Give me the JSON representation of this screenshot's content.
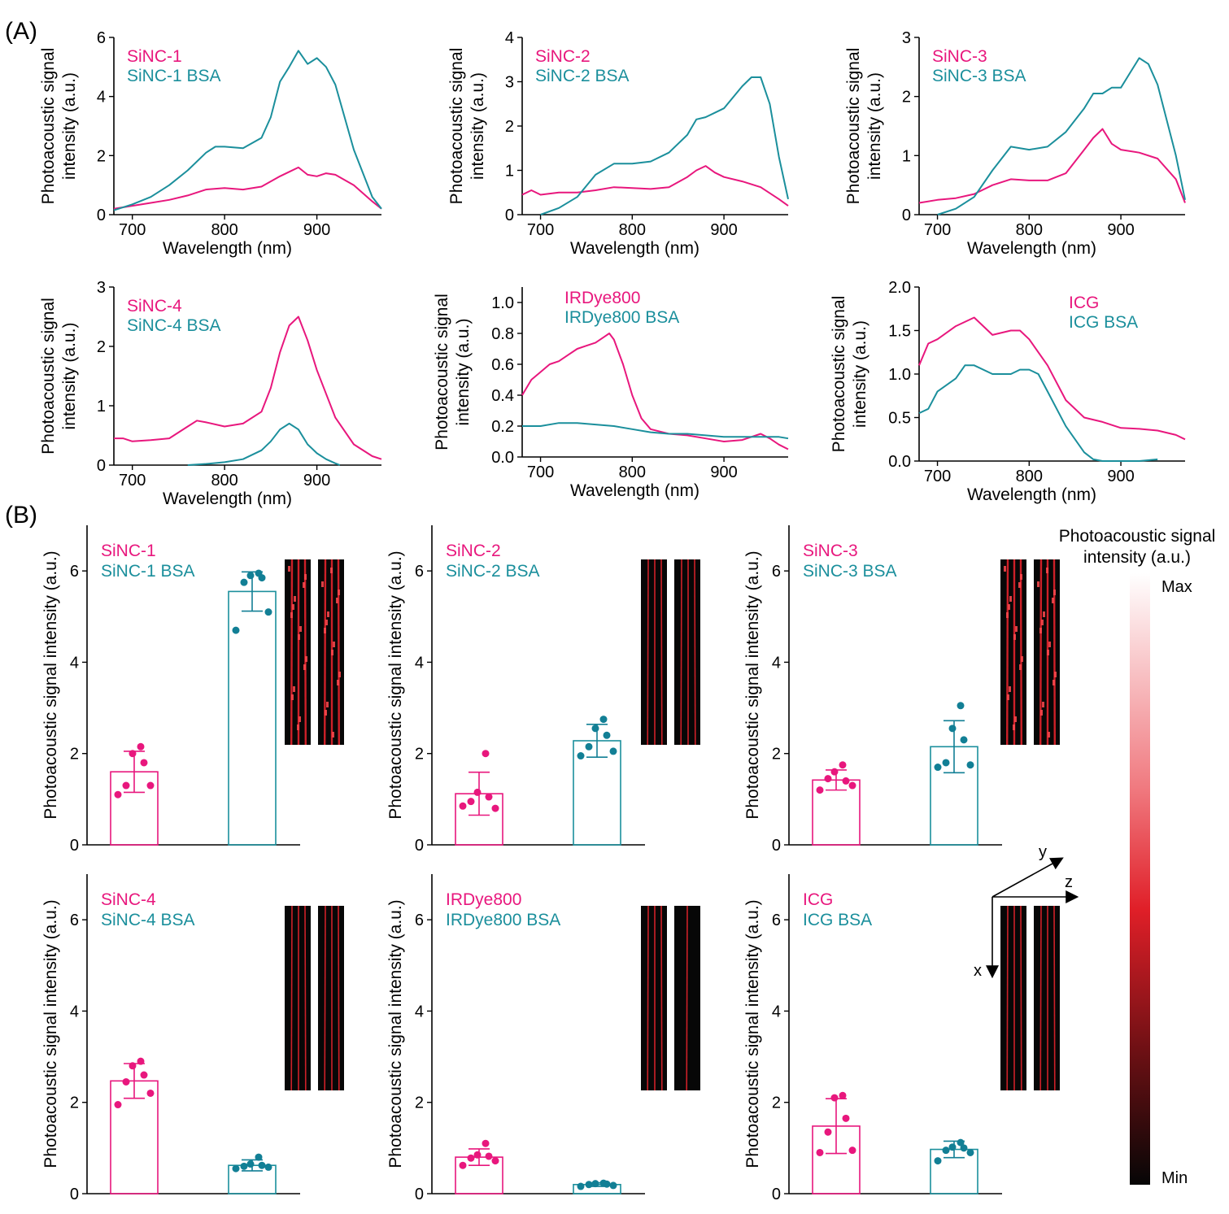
{
  "figure": {
    "panel_labels": [
      "(A)",
      "(B)"
    ],
    "colors": {
      "free": "#e8177d",
      "bsa": "#1b8f9c",
      "bsa_dot": "#127f95"
    },
    "colorbar": {
      "title_line1": "Photoacoustic signal",
      "title_line2": "intensity (a.u.)",
      "max_label": "Max",
      "min_label": "Min"
    },
    "axes_inset": {
      "x": "x",
      "y": "y",
      "z": "z"
    }
  },
  "chart_data": [
    {
      "type": "line",
      "id": "A1",
      "xlabel": "Wavelength (nm)",
      "ylabel_line1": "Photoacoustic signal",
      "ylabel_line2": "intensity (a.u.)",
      "xlim": [
        680,
        970
      ],
      "ylim": [
        0,
        6
      ],
      "xticks": [
        700,
        800,
        900
      ],
      "yticks": [
        0,
        2,
        4,
        6
      ],
      "ytick_labels": [
        "0",
        "2",
        "4",
        "6"
      ],
      "legend_pos": "top-left",
      "series": [
        {
          "name": "SiNC-1",
          "color": "#e8177d",
          "x": [
            680,
            700,
            720,
            740,
            760,
            780,
            800,
            820,
            840,
            860,
            870,
            880,
            890,
            900,
            910,
            920,
            940,
            960,
            970
          ],
          "y": [
            0.2,
            0.3,
            0.4,
            0.5,
            0.65,
            0.85,
            0.9,
            0.85,
            0.95,
            1.3,
            1.45,
            1.6,
            1.35,
            1.3,
            1.4,
            1.35,
            1.0,
            0.45,
            0.2
          ]
        },
        {
          "name": "SiNC-1 BSA",
          "color": "#1b8f9c",
          "x": [
            680,
            700,
            720,
            740,
            760,
            780,
            790,
            800,
            820,
            840,
            850,
            860,
            870,
            880,
            890,
            900,
            910,
            920,
            940,
            960,
            970
          ],
          "y": [
            0.15,
            0.35,
            0.6,
            1.0,
            1.5,
            2.1,
            2.3,
            2.3,
            2.25,
            2.6,
            3.3,
            4.5,
            5.0,
            5.55,
            5.1,
            5.3,
            5.0,
            4.4,
            2.2,
            0.6,
            0.2
          ]
        }
      ]
    },
    {
      "type": "line",
      "id": "A2",
      "xlabel": "Wavelength (nm)",
      "ylabel_line1": "Photoacoustic signal",
      "ylabel_line2": "intensity (a.u.)",
      "xlim": [
        680,
        970
      ],
      "ylim": [
        0,
        4
      ],
      "xticks": [
        700,
        800,
        900
      ],
      "yticks": [
        0,
        1,
        2,
        3,
        4
      ],
      "ytick_labels": [
        "0",
        "1",
        "2",
        "3",
        "4"
      ],
      "legend_pos": "top-left",
      "series": [
        {
          "name": "SiNC-2",
          "color": "#e8177d",
          "x": [
            680,
            690,
            700,
            720,
            740,
            760,
            780,
            800,
            820,
            840,
            860,
            870,
            880,
            890,
            900,
            920,
            940,
            960,
            970
          ],
          "y": [
            0.45,
            0.55,
            0.45,
            0.5,
            0.5,
            0.55,
            0.62,
            0.6,
            0.58,
            0.62,
            0.85,
            1.0,
            1.1,
            0.95,
            0.85,
            0.75,
            0.62,
            0.35,
            0.2
          ]
        },
        {
          "name": "SiNC-2 BSA",
          "color": "#1b8f9c",
          "x": [
            700,
            720,
            740,
            760,
            780,
            800,
            820,
            840,
            860,
            870,
            880,
            890,
            900,
            920,
            930,
            940,
            950,
            960,
            970
          ],
          "y": [
            0.0,
            0.15,
            0.4,
            0.9,
            1.15,
            1.15,
            1.2,
            1.4,
            1.8,
            2.15,
            2.2,
            2.3,
            2.4,
            2.9,
            3.1,
            3.1,
            2.5,
            1.3,
            0.35
          ]
        }
      ]
    },
    {
      "type": "line",
      "id": "A3",
      "xlabel": "Wavelength (nm)",
      "ylabel_line1": "Photoacoustic signal",
      "ylabel_line2": "intensity (a.u.)",
      "xlim": [
        680,
        970
      ],
      "ylim": [
        0,
        3
      ],
      "xticks": [
        700,
        800,
        900
      ],
      "yticks": [
        0,
        1,
        2,
        3
      ],
      "ytick_labels": [
        "0",
        "1",
        "2",
        "3"
      ],
      "legend_pos": "top-left",
      "series": [
        {
          "name": "SiNC-3",
          "color": "#e8177d",
          "x": [
            680,
            700,
            720,
            740,
            760,
            780,
            800,
            820,
            840,
            860,
            870,
            880,
            890,
            900,
            920,
            940,
            960,
            970
          ],
          "y": [
            0.2,
            0.25,
            0.28,
            0.35,
            0.5,
            0.6,
            0.58,
            0.58,
            0.7,
            1.1,
            1.3,
            1.45,
            1.2,
            1.1,
            1.05,
            0.95,
            0.6,
            0.2
          ]
        },
        {
          "name": "SiNC-3 BSA",
          "color": "#1b8f9c",
          "x": [
            700,
            720,
            740,
            760,
            780,
            800,
            820,
            840,
            860,
            870,
            880,
            890,
            900,
            910,
            920,
            930,
            940,
            960,
            970
          ],
          "y": [
            0.0,
            0.1,
            0.3,
            0.75,
            1.15,
            1.1,
            1.15,
            1.4,
            1.8,
            2.05,
            2.05,
            2.15,
            2.15,
            2.4,
            2.65,
            2.55,
            2.2,
            1.0,
            0.25
          ]
        }
      ]
    },
    {
      "type": "line",
      "id": "A4",
      "xlabel": "Wavelength (nm)",
      "ylabel_line1": "Photoacoustic signal",
      "ylabel_line2": "intensity (a.u.)",
      "xlim": [
        680,
        970
      ],
      "ylim": [
        0,
        3
      ],
      "xticks": [
        700,
        800,
        900
      ],
      "yticks": [
        0,
        1,
        2,
        3
      ],
      "ytick_labels": [
        "0",
        "1",
        "2",
        "3"
      ],
      "legend_pos": "top-left",
      "series": [
        {
          "name": "SiNC-4",
          "color": "#e8177d",
          "x": [
            680,
            690,
            700,
            720,
            740,
            760,
            770,
            780,
            800,
            820,
            840,
            850,
            860,
            870,
            880,
            890,
            900,
            920,
            940,
            960,
            970
          ],
          "y": [
            0.45,
            0.45,
            0.4,
            0.42,
            0.45,
            0.65,
            0.75,
            0.72,
            0.65,
            0.7,
            0.9,
            1.3,
            1.9,
            2.35,
            2.5,
            2.1,
            1.6,
            0.8,
            0.35,
            0.15,
            0.1
          ]
        },
        {
          "name": "SiNC-4 BSA",
          "color": "#1b8f9c",
          "x": [
            760,
            780,
            800,
            820,
            840,
            850,
            860,
            870,
            880,
            890,
            900,
            910,
            920,
            925
          ],
          "y": [
            0.0,
            0.02,
            0.05,
            0.1,
            0.25,
            0.4,
            0.6,
            0.7,
            0.6,
            0.35,
            0.2,
            0.1,
            0.03,
            0.0
          ]
        }
      ]
    },
    {
      "type": "line",
      "id": "A5",
      "xlabel": "Wavelength (nm)",
      "ylabel_line1": "Photoacoustic signal",
      "ylabel_line2": "intensity (a.u.)",
      "xlim": [
        680,
        970
      ],
      "ylim": [
        0,
        1.1
      ],
      "xticks": [
        700,
        800,
        900
      ],
      "yticks": [
        0,
        0.2,
        0.4,
        0.6,
        0.8,
        1.0
      ],
      "ytick_labels": [
        "0.0",
        "0.2",
        "0.4",
        "0.6",
        "0.8",
        "1.0"
      ],
      "legend_pos": "top-center",
      "series": [
        {
          "name": "IRDye800",
          "color": "#e8177d",
          "x": [
            680,
            690,
            700,
            710,
            720,
            730,
            740,
            750,
            760,
            770,
            775,
            780,
            790,
            800,
            810,
            820,
            840,
            860,
            880,
            900,
            920,
            940,
            950,
            960,
            970
          ],
          "y": [
            0.4,
            0.5,
            0.55,
            0.6,
            0.62,
            0.66,
            0.7,
            0.72,
            0.74,
            0.78,
            0.8,
            0.76,
            0.6,
            0.4,
            0.25,
            0.18,
            0.15,
            0.14,
            0.12,
            0.1,
            0.11,
            0.15,
            0.12,
            0.08,
            0.05
          ]
        },
        {
          "name": "IRDye800 BSA",
          "color": "#1b8f9c",
          "x": [
            680,
            700,
            720,
            740,
            760,
            780,
            800,
            820,
            840,
            860,
            880,
            900,
            920,
            940,
            960,
            970
          ],
          "y": [
            0.2,
            0.2,
            0.22,
            0.22,
            0.21,
            0.2,
            0.18,
            0.16,
            0.15,
            0.15,
            0.14,
            0.13,
            0.13,
            0.13,
            0.13,
            0.12
          ]
        }
      ]
    },
    {
      "type": "line",
      "id": "A6",
      "xlabel": "Wavelength (nm)",
      "ylabel_line1": "Photoacoustic signal",
      "ylabel_line2": "intensity (a.u.)",
      "xlim": [
        680,
        970
      ],
      "ylim": [
        0,
        2.0
      ],
      "xticks": [
        700,
        800,
        900
      ],
      "yticks": [
        0,
        0.5,
        1.0,
        1.5,
        2.0
      ],
      "ytick_labels": [
        "0.0",
        "0.5",
        "1.0",
        "1.5",
        "2.0"
      ],
      "legend_pos": "top-right",
      "series": [
        {
          "name": "ICG",
          "color": "#e8177d",
          "x": [
            680,
            690,
            700,
            720,
            740,
            760,
            780,
            790,
            800,
            820,
            840,
            860,
            880,
            900,
            920,
            940,
            960,
            970
          ],
          "y": [
            1.1,
            1.35,
            1.4,
            1.55,
            1.65,
            1.45,
            1.5,
            1.5,
            1.4,
            1.1,
            0.7,
            0.5,
            0.45,
            0.38,
            0.37,
            0.35,
            0.3,
            0.25
          ]
        },
        {
          "name": "ICG BSA",
          "color": "#1b8f9c",
          "x": [
            680,
            690,
            700,
            720,
            730,
            740,
            760,
            780,
            790,
            800,
            810,
            820,
            840,
            860,
            870,
            880,
            900,
            920,
            940
          ],
          "y": [
            0.55,
            0.6,
            0.8,
            0.95,
            1.1,
            1.1,
            1.0,
            1.0,
            1.05,
            1.05,
            1.0,
            0.8,
            0.4,
            0.1,
            0.02,
            0.0,
            0.0,
            0.0,
            0.02
          ]
        }
      ]
    },
    {
      "type": "bar",
      "id": "B1",
      "ylabel": "Photoacoustic signal intensity (a.u.)",
      "ylim": [
        0,
        7
      ],
      "yticks": [
        0,
        2,
        4,
        6
      ],
      "ytick_labels": [
        "0",
        "2",
        "4",
        "6"
      ],
      "categories": [
        "SiNC-1",
        "SiNC-1 BSA"
      ],
      "means": [
        1.6,
        5.55
      ],
      "sd": [
        0.45,
        0.43
      ],
      "points": [
        [
          1.1,
          1.3,
          1.3,
          1.8,
          2.0,
          2.15
        ],
        [
          4.7,
          5.1,
          5.75,
          5.85,
          5.9,
          5.95
        ]
      ]
    },
    {
      "type": "bar",
      "id": "B2",
      "ylabel": "Photoacoustic signal intensity (a.u.)",
      "ylim": [
        0,
        7
      ],
      "yticks": [
        0,
        2,
        4,
        6
      ],
      "ytick_labels": [
        "0",
        "2",
        "4",
        "6"
      ],
      "categories": [
        "SiNC-2",
        "SiNC-2 BSA"
      ],
      "means": [
        1.12,
        2.28
      ],
      "sd": [
        0.47,
        0.36
      ],
      "points": [
        [
          0.85,
          0.8,
          0.95,
          1.05,
          1.15,
          2.0
        ],
        [
          1.95,
          2.05,
          2.15,
          2.4,
          2.55,
          2.75
        ]
      ]
    },
    {
      "type": "bar",
      "id": "B3",
      "ylabel": "Photoacoustic signal intensity (a.u.)",
      "ylim": [
        0,
        7
      ],
      "yticks": [
        0,
        2,
        4,
        6
      ],
      "ytick_labels": [
        "0",
        "2",
        "4",
        "6"
      ],
      "categories": [
        "SiNC-3",
        "SiNC-3 BSA"
      ],
      "means": [
        1.42,
        2.15
      ],
      "sd": [
        0.22,
        0.57
      ],
      "points": [
        [
          1.2,
          1.3,
          1.45,
          1.4,
          1.6,
          1.75
        ],
        [
          1.7,
          1.75,
          1.8,
          2.3,
          2.55,
          3.05
        ]
      ]
    },
    {
      "type": "bar",
      "id": "B4",
      "ylabel": "Photoacoustic signal intensity (a.u.)",
      "ylim": [
        0,
        7
      ],
      "yticks": [
        0,
        2,
        4,
        6
      ],
      "ytick_labels": [
        "0",
        "2",
        "4",
        "6"
      ],
      "categories": [
        "SiNC-4",
        "SiNC-4 BSA"
      ],
      "means": [
        2.47,
        0.62
      ],
      "sd": [
        0.38,
        0.12
      ],
      "points": [
        [
          1.95,
          2.2,
          2.45,
          2.6,
          2.8,
          2.9
        ],
        [
          0.55,
          0.58,
          0.6,
          0.62,
          0.65,
          0.8
        ]
      ]
    },
    {
      "type": "bar",
      "id": "B5",
      "ylabel": "Photoacoustic signal intensity (a.u.)",
      "ylim": [
        0,
        7
      ],
      "yticks": [
        0,
        2,
        4,
        6
      ],
      "ytick_labels": [
        "0",
        "2",
        "4",
        "6"
      ],
      "categories": [
        "IRDye800",
        "IRDye800 BSA"
      ],
      "means": [
        0.8,
        0.2
      ],
      "sd": [
        0.18,
        0.04
      ],
      "points": [
        [
          0.62,
          0.72,
          0.78,
          0.82,
          0.85,
          1.1
        ],
        [
          0.16,
          0.18,
          0.2,
          0.21,
          0.22,
          0.23
        ]
      ]
    },
    {
      "type": "bar",
      "id": "B6",
      "ylabel": "Photoacoustic signal intensity (a.u.)",
      "ylim": [
        0,
        7
      ],
      "yticks": [
        0,
        2,
        4,
        6
      ],
      "ytick_labels": [
        "0",
        "2",
        "4",
        "6"
      ],
      "categories": [
        "ICG",
        "ICG BSA"
      ],
      "means": [
        1.48,
        0.97
      ],
      "sd": [
        0.6,
        0.18
      ],
      "points": [
        [
          0.9,
          0.95,
          1.35,
          1.65,
          2.1,
          2.15
        ],
        [
          0.72,
          0.9,
          0.95,
          1.0,
          1.02,
          1.12
        ]
      ]
    }
  ]
}
